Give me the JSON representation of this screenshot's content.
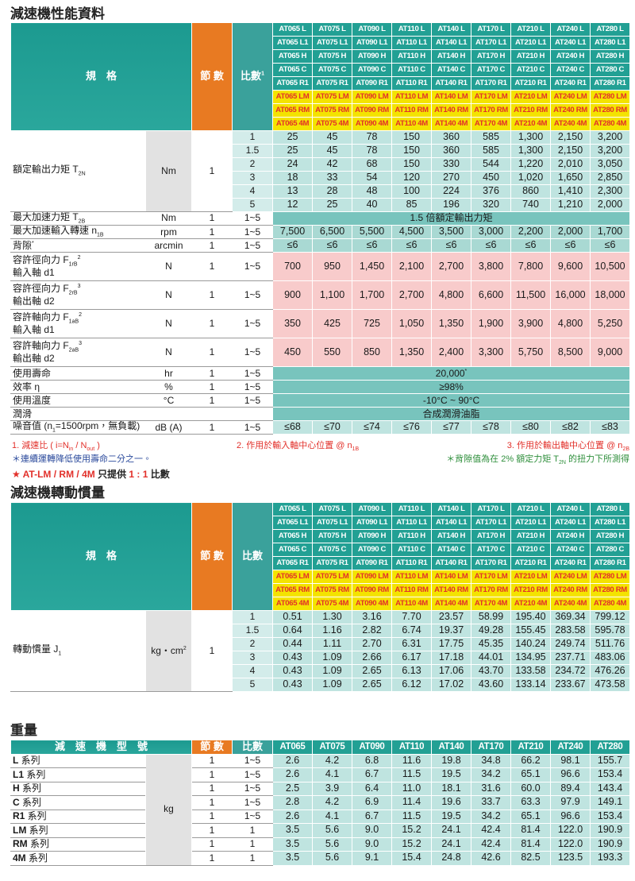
{
  "title1": "減速機性能資料",
  "title2": "減速機轉動慣量",
  "title3": "重量",
  "model_header": {
    "standard": [
      [
        "AT065 L",
        "AT075 L",
        "AT090 L",
        "AT110 L",
        "AT140 L",
        "AT170 L",
        "AT210 L",
        "AT240 L",
        "AT280 L"
      ],
      [
        "AT065 L1",
        "AT075 L1",
        "AT090 L1",
        "AT110 L1",
        "AT140 L1",
        "AT170 L1",
        "AT210 L1",
        "AT240 L1",
        "AT280 L1"
      ],
      [
        "AT065 H",
        "AT075 H",
        "AT090 H",
        "AT110 H",
        "AT140 H",
        "AT170 H",
        "AT210 H",
        "AT240 H",
        "AT280 H"
      ],
      [
        "AT065 C",
        "AT075 C",
        "AT090 C",
        "AT110 C",
        "AT140 C",
        "AT170 C",
        "AT210 C",
        "AT240 C",
        "AT280 C"
      ],
      [
        "AT065 R1",
        "AT075 R1",
        "AT090 R1",
        "AT110 R1",
        "AT140 R1",
        "AT170 R1",
        "AT210 R1",
        "AT240 R1",
        "AT280 R1"
      ]
    ],
    "special": [
      [
        "AT065 LM",
        "AT075 LM",
        "AT090 LM",
        "AT110 LM",
        "AT140 LM",
        "AT170 LM",
        "AT210 LM",
        "AT240 LM",
        "AT280 LM"
      ],
      [
        "AT065 RM",
        "AT075 RM",
        "AT090 RM",
        "AT110 RM",
        "AT140 RM",
        "AT170 RM",
        "AT210 RM",
        "AT240 RM",
        "AT280 RM"
      ],
      [
        "AT065 4M",
        "AT075 4M",
        "AT090 4M",
        "AT110 4M",
        "AT140 4M",
        "AT170 4M",
        "AT210 4M",
        "AT240 4M",
        "AT280 4M"
      ]
    ]
  },
  "performance": {
    "header": {
      "spec": "規　格",
      "stages": "節 數",
      "ratio": [
        "比數",
        {
          "sup": "1"
        }
      ]
    },
    "torque": {
      "label": [
        "額定輸出力矩 T",
        {
          "sub": "2N"
        }
      ],
      "unit": "Nm",
      "stages": "1",
      "ratios": [
        "1",
        "1.5",
        "2",
        "3",
        "4",
        "5"
      ],
      "values": [
        [
          "25",
          "45",
          "78",
          "150",
          "360",
          "585",
          "1,300",
          "2,150",
          "3,200"
        ],
        [
          "25",
          "45",
          "78",
          "150",
          "360",
          "585",
          "1,300",
          "2,150",
          "3,200"
        ],
        [
          "24",
          "42",
          "68",
          "150",
          "330",
          "544",
          "1,220",
          "2,010",
          "3,050"
        ],
        [
          "18",
          "33",
          "54",
          "120",
          "270",
          "450",
          "1,020",
          "1,650",
          "2,850"
        ],
        [
          "13",
          "28",
          "48",
          "100",
          "224",
          "376",
          "860",
          "1,410",
          "2,300"
        ],
        [
          "12",
          "25",
          "40",
          "85",
          "196",
          "320",
          "740",
          "1,210",
          "2,000"
        ]
      ]
    },
    "rows": [
      {
        "label": [
          "最大加速力矩 T",
          {
            "sub": "2B"
          }
        ],
        "unit": "Nm",
        "stages": "1",
        "ratio": "1~5",
        "merged": [
          "1.5 倍額定輸出力矩"
        ]
      },
      {
        "label": [
          "最大加速輸入轉速 n",
          {
            "sub": "1B"
          }
        ],
        "unit": "rpm",
        "stages": "1",
        "ratio": "1~5",
        "values": [
          "7,500",
          "6,500",
          "5,500",
          "4,500",
          "3,500",
          "3,000",
          "2,200",
          "2,000",
          "1,700"
        ]
      },
      {
        "label": [
          "背隙",
          {
            "sup": "*"
          }
        ],
        "unit": "arcmin",
        "stages": "1",
        "ratio": "1~5",
        "values": [
          "≤6",
          "≤6",
          "≤6",
          "≤6",
          "≤6",
          "≤6",
          "≤6",
          "≤6",
          "≤6"
        ]
      },
      {
        "label": [
          "容許徑向力 F",
          {
            "sub": "1rB"
          },
          {
            "sup": "2"
          }
        ],
        "label2": "輸入軸 d1",
        "unit": "N",
        "stages": "1",
        "ratio": "1~5",
        "values": [
          "700",
          "950",
          "1,450",
          "2,100",
          "2,700",
          "3,800",
          "7,800",
          "9,600",
          "10,500"
        ]
      },
      {
        "label": [
          "容許徑向力 F",
          {
            "sub": "2rB"
          },
          {
            "sup": "3"
          }
        ],
        "label2": "輸出軸 d2",
        "unit": "N",
        "stages": "1",
        "ratio": "1~5",
        "values": [
          "900",
          "1,100",
          "1,700",
          "2,700",
          "4,800",
          "6,600",
          "11,500",
          "16,000",
          "18,000"
        ]
      },
      {
        "label": [
          "容許軸向力 F",
          {
            "sub": "1aB"
          },
          {
            "sup": "2"
          }
        ],
        "label2": "輸入軸 d1",
        "unit": "N",
        "stages": "1",
        "ratio": "1~5",
        "values": [
          "350",
          "425",
          "725",
          "1,050",
          "1,350",
          "1,900",
          "3,900",
          "4,800",
          "5,250"
        ]
      },
      {
        "label": [
          "容許軸向力 F",
          {
            "sub": "2aB"
          },
          {
            "sup": "3"
          }
        ],
        "label2": "輸出軸 d2",
        "unit": "N",
        "stages": "1",
        "ratio": "1~5",
        "values": [
          "450",
          "550",
          "850",
          "1,350",
          "2,400",
          "3,300",
          "5,750",
          "8,500",
          "9,000"
        ]
      },
      {
        "label": [
          "使用壽命"
        ],
        "unit": "hr",
        "stages": "1",
        "ratio": "1~5",
        "merged": [
          "20,000",
          {
            "sup": "*"
          }
        ]
      },
      {
        "label": [
          "效率 η"
        ],
        "unit": "%",
        "stages": "1",
        "ratio": "1~5",
        "merged": [
          "≥98%"
        ]
      },
      {
        "label": [
          "使用溫度"
        ],
        "unit": "°C",
        "stages": "1",
        "ratio": "1~5",
        "merged": [
          "-10°C ~ 90°C"
        ]
      },
      {
        "label": [
          "潤滑"
        ],
        "merged": [
          "合成潤滑油脂"
        ]
      },
      {
        "label": [
          "噪音值 (n",
          {
            "sub": "1"
          },
          "=1500rpm，無負載)"
        ],
        "unit": "dB (A)",
        "stages": "1",
        "ratio": "1~5",
        "values": [
          "≤68",
          "≤70",
          "≤74",
          "≤76",
          "≤77",
          "≤78",
          "≤80",
          "≤82",
          "≤83"
        ]
      }
    ]
  },
  "notes": {
    "n1": [
      "1. 減速比 ( i=N",
      {
        "sub": "in"
      },
      " / N",
      {
        "sub": "out"
      },
      " )"
    ],
    "n2": [
      "2. 作用於輸入軸中心位置 @ n",
      {
        "sub": "1B"
      }
    ],
    "n3": [
      "3. 作用於輸出軸中心位置 @ n",
      {
        "sub": "2B"
      }
    ],
    "n4": "＊連續運轉降低使用壽命二分之一。",
    "n5": [
      "＊背隙值為在 2% 額定力矩 T",
      {
        "sub": "2N"
      },
      " 的扭力下所測得"
    ],
    "n6": [
      "★ AT-LM / RM / 4M",
      " 只提供 ",
      "1 : 1",
      " 比數"
    ]
  },
  "inertia": {
    "header": {
      "spec": "規　格",
      "stages": "節 數",
      "ratio": "比數"
    },
    "label": [
      "轉動慣量 J",
      {
        "sub": "1"
      }
    ],
    "unit": [
      "kg・cm",
      {
        "sup": "2"
      }
    ],
    "stages": "1",
    "ratios": [
      "1",
      "1.5",
      "2",
      "3",
      "4",
      "5"
    ],
    "values": [
      [
        "0.51",
        "1.30",
        "3.16",
        "7.70",
        "23.57",
        "58.99",
        "195.40",
        "369.34",
        "799.12"
      ],
      [
        "0.64",
        "1.16",
        "2.82",
        "6.74",
        "19.37",
        "49.28",
        "155.45",
        "283.58",
        "595.78"
      ],
      [
        "0.44",
        "1.11",
        "2.70",
        "6.31",
        "17.75",
        "45.35",
        "140.24",
        "249.74",
        "511.76"
      ],
      [
        "0.43",
        "1.09",
        "2.66",
        "6.17",
        "17.18",
        "44.01",
        "134.95",
        "237.71",
        "483.06"
      ],
      [
        "0.43",
        "1.09",
        "2.65",
        "6.13",
        "17.06",
        "43.70",
        "133.58",
        "234.72",
        "476.26"
      ],
      [
        "0.43",
        "1.09",
        "2.65",
        "6.12",
        "17.02",
        "43.60",
        "133.14",
        "233.67",
        "473.58"
      ]
    ]
  },
  "weight": {
    "header": {
      "spec": "減　速　機　型　號",
      "stages": "節 數",
      "ratio": "比數",
      "models": [
        "AT065",
        "AT075",
        "AT090",
        "AT110",
        "AT140",
        "AT170",
        "AT210",
        "AT240",
        "AT280"
      ]
    },
    "unit": "kg",
    "rows": [
      {
        "label": [
          "L",
          " 系列"
        ],
        "stages": "1",
        "ratio": "1~5",
        "values": [
          "2.6",
          "4.2",
          "6.8",
          "11.6",
          "19.8",
          "34.8",
          "66.2",
          "98.1",
          "155.7"
        ]
      },
      {
        "label": [
          "L1",
          " 系列"
        ],
        "stages": "1",
        "ratio": "1~5",
        "values": [
          "2.6",
          "4.1",
          "6.7",
          "11.5",
          "19.5",
          "34.2",
          "65.1",
          "96.6",
          "153.4"
        ]
      },
      {
        "label": [
          "H",
          " 系列"
        ],
        "stages": "1",
        "ratio": "1~5",
        "values": [
          "2.5",
          "3.9",
          "6.4",
          "11.0",
          "18.1",
          "31.6",
          "60.0",
          "89.4",
          "143.4"
        ]
      },
      {
        "label": [
          "C",
          " 系列"
        ],
        "stages": "1",
        "ratio": "1~5",
        "values": [
          "2.8",
          "4.2",
          "6.9",
          "11.4",
          "19.6",
          "33.7",
          "63.3",
          "97.9",
          "149.1"
        ]
      },
      {
        "label": [
          "R1",
          " 系列"
        ],
        "stages": "1",
        "ratio": "1~5",
        "values": [
          "2.6",
          "4.1",
          "6.7",
          "11.5",
          "19.5",
          "34.2",
          "65.1",
          "96.6",
          "153.4"
        ]
      },
      {
        "label": [
          "LM",
          " 系列"
        ],
        "stages": "1",
        "ratio": "1",
        "values": [
          "3.5",
          "5.6",
          "9.0",
          "15.2",
          "24.1",
          "42.4",
          "81.4",
          "122.0",
          "190.9"
        ]
      },
      {
        "label": [
          "RM",
          " 系列"
        ],
        "stages": "1",
        "ratio": "1",
        "values": [
          "3.5",
          "5.6",
          "9.0",
          "15.2",
          "24.1",
          "42.4",
          "81.4",
          "122.0",
          "190.9"
        ]
      },
      {
        "label": [
          "4M",
          " 系列"
        ],
        "stages": "1",
        "ratio": "1",
        "values": [
          "3.5",
          "5.6",
          "9.1",
          "15.4",
          "24.8",
          "42.6",
          "82.5",
          "123.5",
          "193.3"
        ]
      }
    ]
  }
}
